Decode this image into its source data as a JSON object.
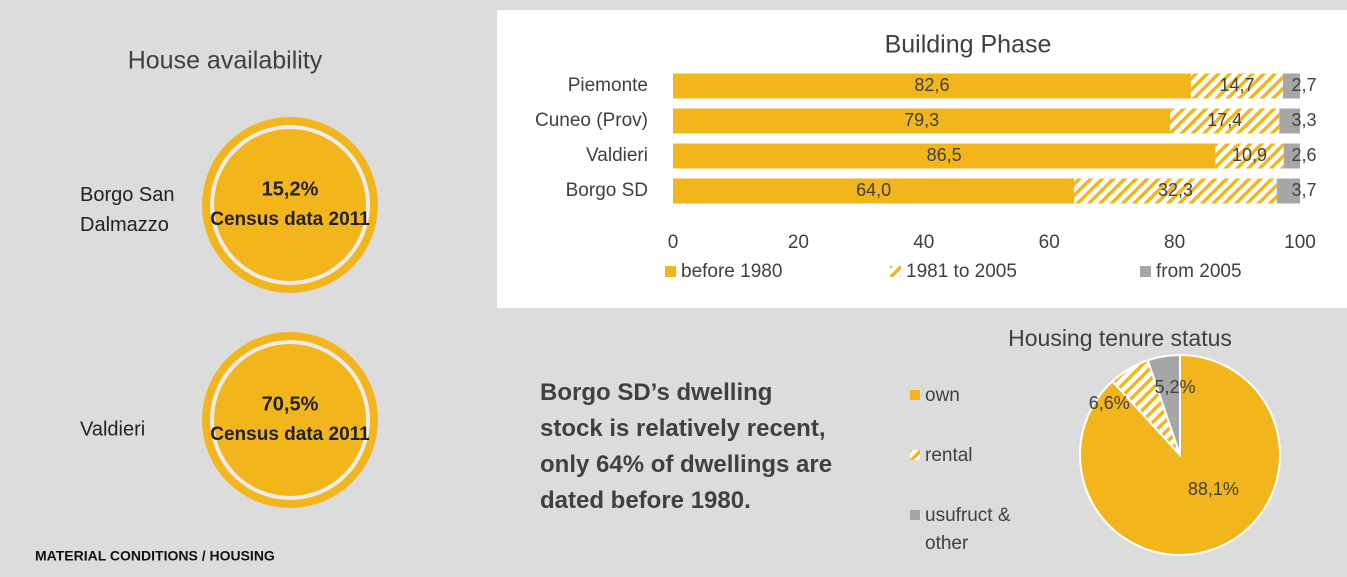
{
  "house_availability": {
    "title": "House availability",
    "items": [
      {
        "place": "Borgo San Dalmazzo",
        "value_label": "15,2%",
        "note": "Census data 2011"
      },
      {
        "place": "Valdieri",
        "value_label": "70,5%",
        "note": "Census data 2011"
      }
    ]
  },
  "chart_data": [
    {
      "type": "stacked-barh",
      "title": "Building Phase",
      "categories": [
        "Piemonte",
        "Cuneo (Prov)",
        "Valdieri",
        "Borgo SD"
      ],
      "series": [
        {
          "name": "before 1980",
          "color": "#f2b51c",
          "values": [
            82.6,
            79.3,
            86.5,
            64.0
          ],
          "value_labels": [
            "82,6",
            "79,3",
            "86,5",
            "64,0"
          ]
        },
        {
          "name": "1981 to 2005",
          "color": "#f2b51c",
          "pattern": "hatch",
          "values": [
            14.7,
            17.4,
            10.9,
            32.3
          ],
          "value_labels": [
            "14,7",
            "17,4",
            "10,9",
            "32,3"
          ]
        },
        {
          "name": "from 2005",
          "color": "#a6a6a6",
          "values": [
            2.7,
            3.3,
            2.6,
            3.7
          ],
          "value_labels": [
            "2,7",
            "3,3",
            "2,6",
            "3,7"
          ]
        }
      ],
      "xlim": [
        0,
        100
      ],
      "xticks": [
        0,
        20,
        40,
        60,
        80,
        100
      ],
      "legend": "bottom"
    },
    {
      "type": "pie",
      "title": "Housing tenure status",
      "categories": [
        "own",
        "rental",
        "usufruct & other"
      ],
      "values": [
        88.1,
        6.6,
        5.2
      ],
      "value_labels": [
        "88,1%",
        "6,6%",
        "5,2%"
      ],
      "colors": [
        "#f2b51c",
        "#f2b51c",
        "#a6a6a6"
      ],
      "patterns": [
        null,
        "hatch",
        null
      ],
      "legend": "left"
    }
  ],
  "caption": "Borgo SD’s dwelling stock is relatively recent, only 64% of dwellings are dated before 1980.",
  "footer": "MATERIAL CONDITIONS  /  HOUSING"
}
